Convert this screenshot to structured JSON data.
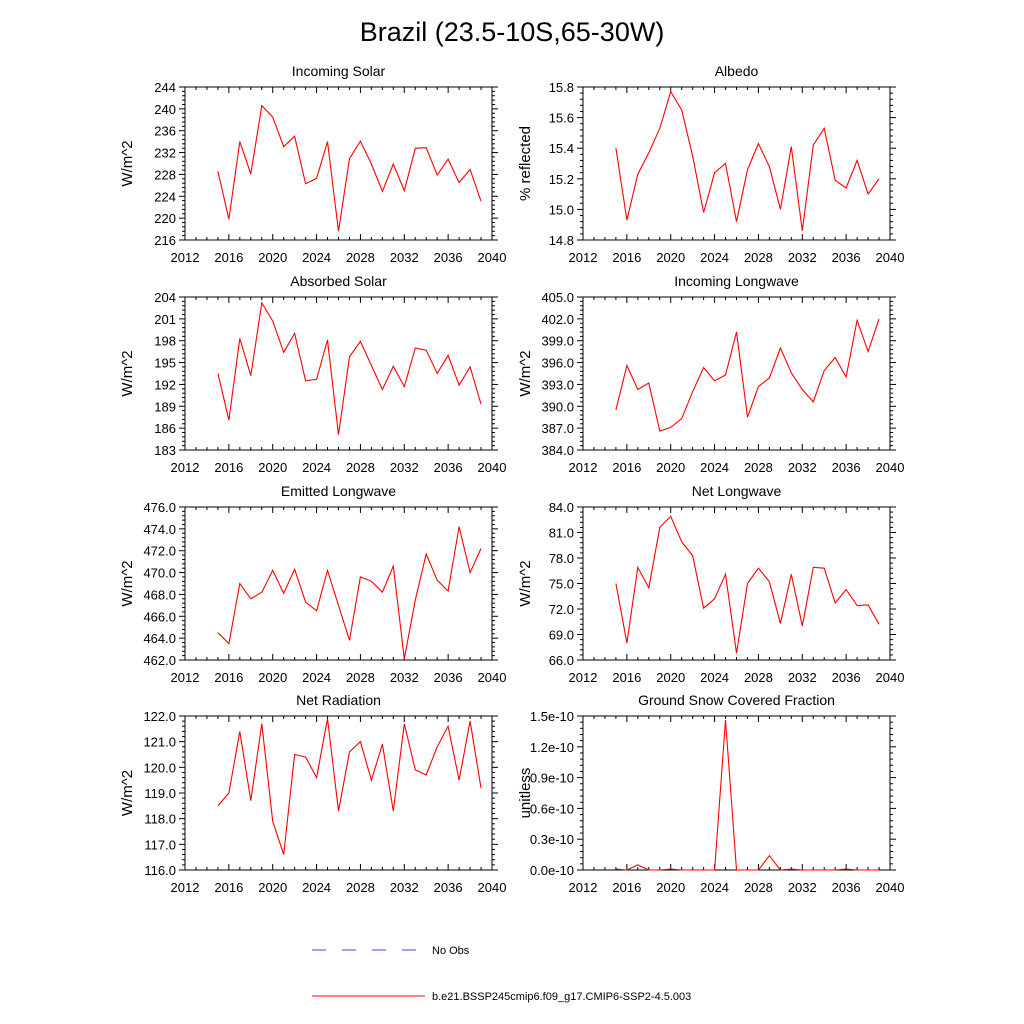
{
  "figure": {
    "title": "Brazil (23.5-10S,65-30W)"
  },
  "legend": {
    "items": [
      {
        "label": "No Obs",
        "color": "#4040ff",
        "dash": true
      },
      {
        "label": "b.e21.BSSP245cmip6.f09_g17.CMIP6-SSP2-4.5.003",
        "color": "#ff0000",
        "dash": false
      }
    ]
  },
  "colors": {
    "series": "#ff0000",
    "obs": "#4040ff"
  },
  "chart_data": [
    {
      "type": "line",
      "title": "Incoming Solar",
      "ylabel": "W/m^2",
      "xlim": [
        2012,
        2040
      ],
      "xticks": [
        "2012",
        "2016",
        "2020",
        "2024",
        "2028",
        "2032",
        "2036",
        "2040"
      ],
      "ylim": [
        216,
        244
      ],
      "yticks": [
        "216",
        "220",
        "224",
        "228",
        "232",
        "236",
        "240",
        "244"
      ],
      "x": [
        2015,
        2016,
        2017,
        2018,
        2019,
        2020,
        2021,
        2022,
        2023,
        2024,
        2025,
        2026,
        2027,
        2028,
        2029,
        2030,
        2031,
        2032,
        2033,
        2034,
        2035,
        2036,
        2037,
        2038,
        2039
      ],
      "series": [
        {
          "values": [
            228.6,
            219.8,
            234.0,
            228.1,
            240.6,
            238.5,
            233.1,
            235.0,
            226.3,
            227.3,
            234.0,
            217.6,
            230.9,
            234.1,
            229.9,
            224.9,
            229.9,
            225.0,
            232.8,
            232.9,
            227.9,
            230.8,
            226.5,
            228.9,
            223.1
          ]
        }
      ]
    },
    {
      "type": "line",
      "title": "Albedo",
      "ylabel": "% reflected",
      "xlim": [
        2012,
        2040
      ],
      "xticks": [
        "2012",
        "2016",
        "2020",
        "2024",
        "2028",
        "2032",
        "2036",
        "2040"
      ],
      "ylim": [
        14.8,
        15.8
      ],
      "yticks": [
        "14.8",
        "15.0",
        "15.2",
        "15.4",
        "15.6",
        "15.8"
      ],
      "x": [
        2015,
        2016,
        2017,
        2018,
        2019,
        2020,
        2021,
        2022,
        2023,
        2024,
        2025,
        2026,
        2027,
        2028,
        2029,
        2030,
        2031,
        2032,
        2033,
        2034,
        2035,
        2036,
        2037,
        2038,
        2039
      ],
      "series": [
        {
          "values": [
            15.4,
            14.93,
            15.23,
            15.37,
            15.53,
            15.77,
            15.65,
            15.35,
            14.98,
            15.24,
            15.3,
            14.92,
            15.26,
            15.43,
            15.28,
            15.0,
            15.41,
            14.86,
            15.42,
            15.53,
            15.19,
            15.14,
            15.32,
            15.1,
            15.2
          ]
        }
      ]
    },
    {
      "type": "line",
      "title": "Absorbed Solar",
      "ylabel": "W/m^2",
      "xlim": [
        2012,
        2040
      ],
      "xticks": [
        "2012",
        "2016",
        "2020",
        "2024",
        "2028",
        "2032",
        "2036",
        "2040"
      ],
      "ylim": [
        183,
        204
      ],
      "yticks": [
        "183",
        "186",
        "189",
        "192",
        "195",
        "198",
        "201",
        "204"
      ],
      "x": [
        2015,
        2016,
        2017,
        2018,
        2019,
        2020,
        2021,
        2022,
        2023,
        2024,
        2025,
        2026,
        2027,
        2028,
        2029,
        2030,
        2031,
        2032,
        2033,
        2034,
        2035,
        2036,
        2037,
        2038,
        2039
      ],
      "series": [
        {
          "values": [
            193.5,
            187.1,
            198.3,
            193.2,
            203.2,
            200.7,
            196.4,
            199.0,
            192.5,
            192.7,
            198.1,
            185.1,
            195.8,
            197.9,
            194.6,
            191.3,
            194.5,
            191.7,
            197.0,
            196.7,
            193.5,
            196.0,
            191.9,
            194.4,
            189.3
          ]
        }
      ]
    },
    {
      "type": "line",
      "title": "Incoming Longwave",
      "ylabel": "W/m^2",
      "xlim": [
        2012,
        2040
      ],
      "xticks": [
        "2012",
        "2016",
        "2020",
        "2024",
        "2028",
        "2032",
        "2036",
        "2040"
      ],
      "ylim": [
        384.0,
        405.0
      ],
      "yticks": [
        "384.0",
        "387.0",
        "390.0",
        "393.0",
        "396.0",
        "399.0",
        "402.0",
        "405.0"
      ],
      "x": [
        2015,
        2016,
        2017,
        2018,
        2019,
        2020,
        2021,
        2022,
        2023,
        2024,
        2025,
        2026,
        2027,
        2028,
        2029,
        2030,
        2031,
        2032,
        2033,
        2034,
        2035,
        2036,
        2037,
        2038,
        2039
      ],
      "series": [
        {
          "values": [
            389.5,
            395.6,
            392.3,
            393.2,
            386.6,
            387.1,
            388.3,
            392.0,
            395.3,
            393.5,
            394.3,
            400.2,
            388.5,
            392.7,
            393.9,
            398.0,
            394.6,
            392.3,
            390.6,
            394.9,
            396.7,
            394.0,
            401.8,
            397.5,
            402.0
          ]
        }
      ]
    },
    {
      "type": "line",
      "title": "Emitted Longwave",
      "ylabel": "W/m^2",
      "xlim": [
        2012,
        2040
      ],
      "xticks": [
        "2012",
        "2016",
        "2020",
        "2024",
        "2028",
        "2032",
        "2036",
        "2040"
      ],
      "ylim": [
        462.0,
        476.0
      ],
      "yticks": [
        "462.0",
        "464.0",
        "466.0",
        "468.0",
        "470.0",
        "472.0",
        "474.0",
        "476.0"
      ],
      "x": [
        2015,
        2016,
        2017,
        2018,
        2019,
        2020,
        2021,
        2022,
        2023,
        2024,
        2025,
        2026,
        2027,
        2028,
        2029,
        2030,
        2031,
        2032,
        2033,
        2034,
        2035,
        2036,
        2037,
        2038,
        2039
      ],
      "series": [
        {
          "values": [
            464.5,
            463.5,
            469.0,
            467.6,
            468.2,
            470.2,
            468.1,
            470.3,
            467.3,
            466.5,
            470.2,
            467.0,
            463.8,
            469.6,
            469.2,
            468.2,
            470.6,
            462.1,
            467.5,
            471.7,
            469.3,
            468.3,
            474.2,
            470.0,
            472.2
          ]
        }
      ]
    },
    {
      "type": "line",
      "title": "Net Longwave",
      "ylabel": "W/m^2",
      "xlim": [
        2012,
        2040
      ],
      "xticks": [
        "2012",
        "2016",
        "2020",
        "2024",
        "2028",
        "2032",
        "2036",
        "2040"
      ],
      "ylim": [
        66.0,
        84.0
      ],
      "yticks": [
        "66.0",
        "69.0",
        "72.0",
        "75.0",
        "78.0",
        "81.0",
        "84.0"
      ],
      "x": [
        2015,
        2016,
        2017,
        2018,
        2019,
        2020,
        2021,
        2022,
        2023,
        2024,
        2025,
        2026,
        2027,
        2028,
        2029,
        2030,
        2031,
        2032,
        2033,
        2034,
        2035,
        2036,
        2037,
        2038,
        2039
      ],
      "series": [
        {
          "values": [
            75.0,
            68.0,
            76.9,
            74.5,
            81.6,
            82.9,
            79.9,
            78.3,
            72.1,
            73.2,
            76.1,
            66.8,
            75.0,
            76.8,
            75.2,
            70.3,
            76.1,
            70.0,
            76.9,
            76.8,
            72.7,
            74.3,
            72.4,
            72.5,
            70.2
          ]
        }
      ]
    },
    {
      "type": "line",
      "title": "Net Radiation",
      "ylabel": "W/m^2",
      "xlim": [
        2012,
        2040
      ],
      "xticks": [
        "2012",
        "2016",
        "2020",
        "2024",
        "2028",
        "2032",
        "2036",
        "2040"
      ],
      "ylim": [
        116.0,
        122.0
      ],
      "yticks": [
        "116.0",
        "117.0",
        "118.0",
        "119.0",
        "120.0",
        "121.0",
        "122.0"
      ],
      "x": [
        2015,
        2016,
        2017,
        2018,
        2019,
        2020,
        2021,
        2022,
        2023,
        2024,
        2025,
        2026,
        2027,
        2028,
        2029,
        2030,
        2031,
        2032,
        2033,
        2034,
        2035,
        2036,
        2037,
        2038,
        2039
      ],
      "series": [
        {
          "values": [
            118.5,
            119.0,
            121.4,
            118.7,
            121.7,
            117.9,
            116.6,
            120.5,
            120.4,
            119.6,
            121.9,
            118.3,
            120.6,
            121.0,
            119.5,
            120.9,
            118.3,
            121.7,
            119.9,
            119.7,
            120.8,
            121.6,
            119.5,
            121.8,
            119.2
          ]
        }
      ]
    },
    {
      "type": "line",
      "title": "Ground Snow Covered Fraction",
      "ylabel": "unitless",
      "xlim": [
        2012,
        2040
      ],
      "xticks": [
        "2012",
        "2016",
        "2020",
        "2024",
        "2028",
        "2032",
        "2036",
        "2040"
      ],
      "ylim": [
        0,
        1.5e-10
      ],
      "yticks": [
        "0.0e-10",
        "0.3e-10",
        "0.6e-10",
        "0.9e-10",
        "1.2e-10",
        "1.5e-10"
      ],
      "x": [
        2015,
        2016,
        2017,
        2018,
        2019,
        2020,
        2021,
        2022,
        2023,
        2024,
        2025,
        2026,
        2027,
        2028,
        2029,
        2030,
        2031,
        2032,
        2033,
        2034,
        2035,
        2036,
        2037,
        2038,
        2039
      ],
      "series": [
        {
          "values": [
            1e-12,
            0,
            5e-12,
            0,
            0,
            1e-12,
            0,
            0,
            0,
            0,
            1.46e-10,
            0,
            0,
            0,
            1.4e-11,
            0,
            1e-12,
            0,
            0,
            0,
            0,
            1e-12,
            0,
            0,
            0
          ]
        }
      ]
    }
  ]
}
